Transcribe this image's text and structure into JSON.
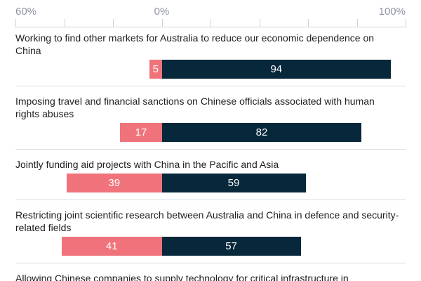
{
  "chart_data": {
    "type": "bar",
    "variant": "diverging-horizontal",
    "title": "",
    "legend": "none",
    "axis": {
      "min": -60,
      "max": 100,
      "tick_interval": 20,
      "labels": [
        {
          "text": "60%",
          "position": -60,
          "align": "left"
        },
        {
          "text": "0%",
          "position": 0,
          "align": "center"
        },
        {
          "text": "100%",
          "position": 100,
          "align": "right"
        }
      ]
    },
    "series_colors": {
      "negative": "#f0737b",
      "positive": "#07273a"
    },
    "rows": [
      {
        "label": "Working to find other markets for Australia to reduce our economic dependence on China",
        "negative": 5,
        "positive": 94
      },
      {
        "label": "Imposing travel and financial sanctions on Chinese officials associated with human rights abuses",
        "negative": 17,
        "positive": 82
      },
      {
        "label": "Jointly funding aid projects with China in the Pacific and Asia",
        "negative": 39,
        "positive": 59
      },
      {
        "label": "Restricting joint scientific research between Australia and China in defence and security-related fields",
        "negative": 41,
        "positive": 57
      },
      {
        "label": "Allowing Chinese companies to supply technology for critical infrastructure in",
        "negative": null,
        "positive": null,
        "truncated": true
      }
    ]
  },
  "colors": {
    "background": "#ffffff",
    "axis_label": "#8d95a2",
    "axis_line": "#ccd3db",
    "separator": "#d9dde2",
    "category_text": "#1d1e20",
    "bar_value_text": "#ffffff"
  }
}
